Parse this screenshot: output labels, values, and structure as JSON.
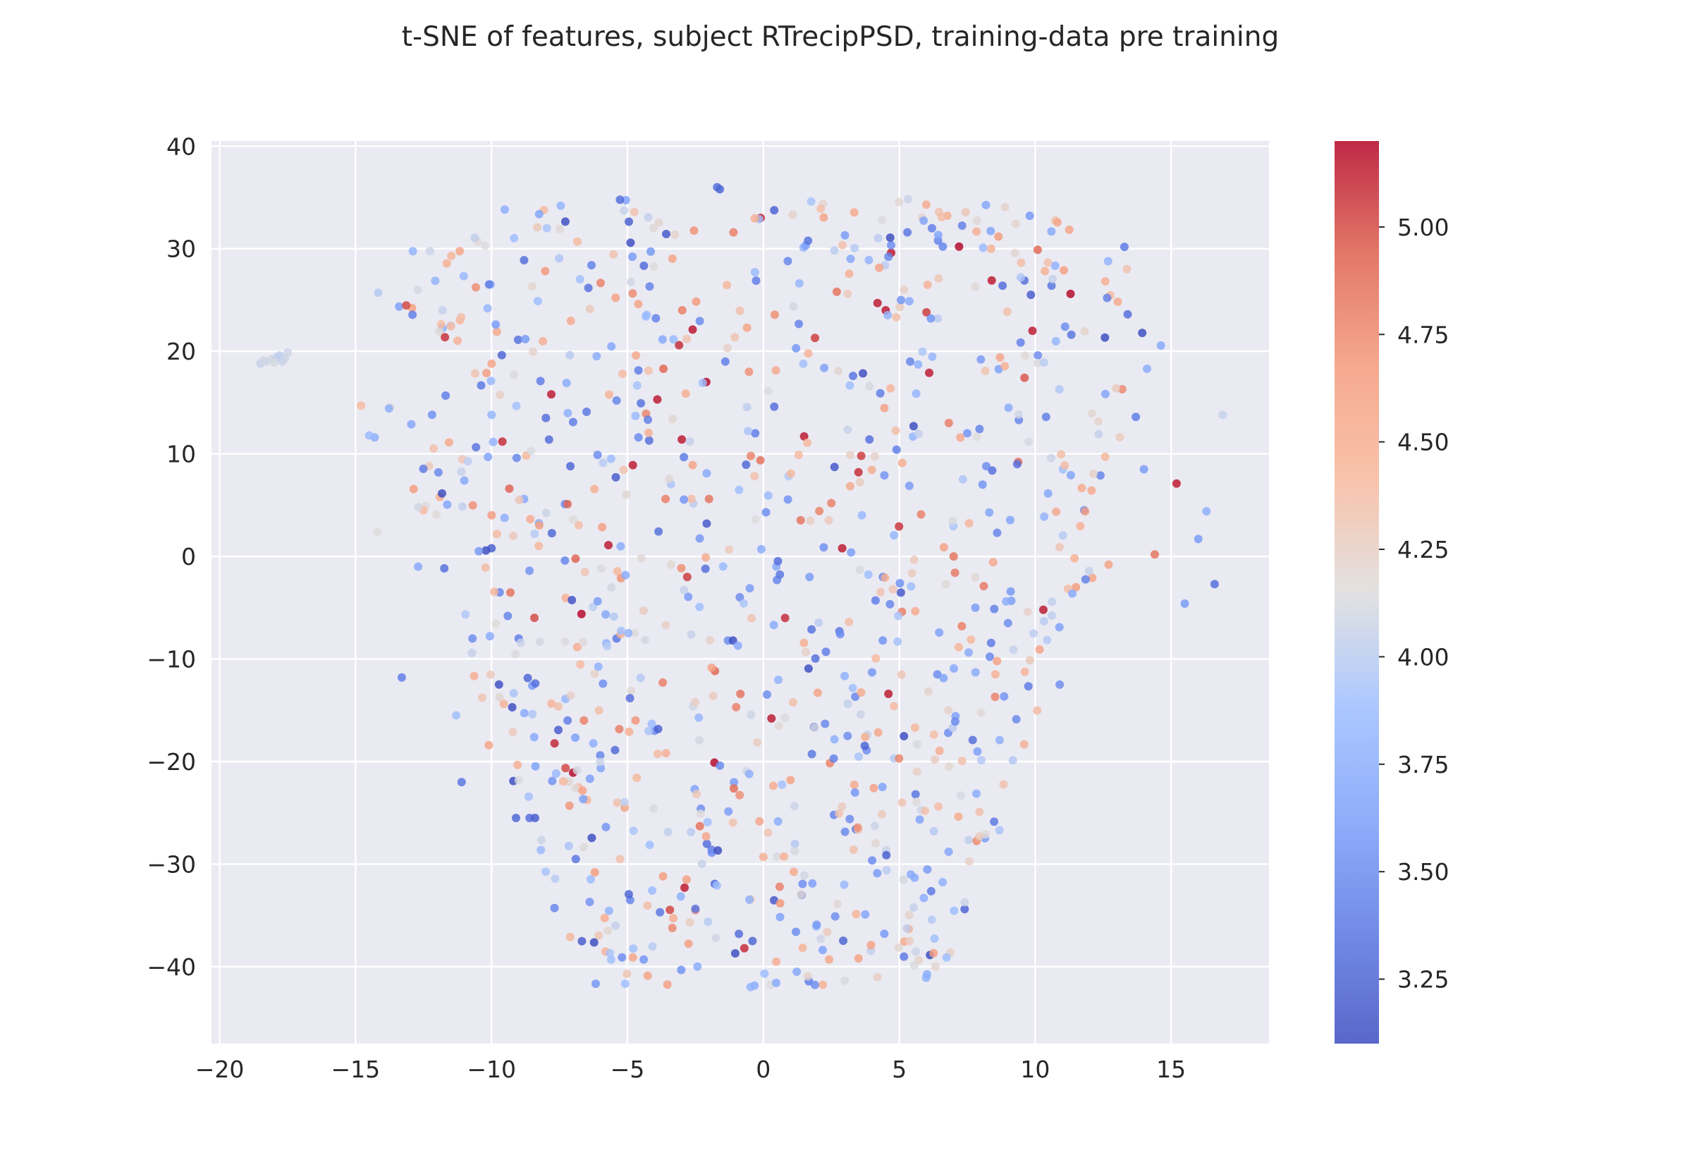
{
  "chart_data": {
    "type": "scatter",
    "title": "t-SNE of features, subject RTrecipPSD, training-data pre training",
    "xlabel": "",
    "ylabel": "",
    "xlim": [
      -20.3,
      18.6
    ],
    "ylim": [
      -47.5,
      40.5
    ],
    "x_ticks": [
      -20,
      -15,
      -10,
      -5,
      0,
      5,
      10,
      15
    ],
    "x_tick_labels": [
      "−20",
      "−15",
      "−10",
      "−5",
      "0",
      "5",
      "10",
      "15"
    ],
    "y_ticks": [
      40,
      30,
      20,
      10,
      0,
      -10,
      -20,
      -30,
      -40
    ],
    "y_tick_labels": [
      "40",
      "30",
      "20",
      "10",
      "0",
      "−10",
      "−20",
      "−30",
      "−40"
    ],
    "grid": true,
    "background": "#eaeaf2",
    "colormap": "coolwarm",
    "colorbar": {
      "range": [
        3.1,
        5.2
      ],
      "ticks": [
        3.25,
        3.5,
        3.75,
        4.0,
        4.25,
        4.5,
        4.75,
        5.0
      ],
      "tick_labels": [
        "3.25",
        "3.50",
        "3.75",
        "4.00",
        "4.25",
        "4.50",
        "4.75",
        "5.00"
      ]
    },
    "point_count_approx": 1000,
    "points": [
      [
        -18.5,
        18.8,
        4.05
      ],
      [
        -18.3,
        19.0,
        4.08
      ],
      [
        -18.1,
        19.2,
        4.1
      ],
      [
        -17.9,
        19.4,
        4.05
      ],
      [
        -18.0,
        18.9,
        4.12
      ],
      [
        -17.6,
        19.3,
        4.1
      ],
      [
        -17.5,
        19.9,
        4.08
      ],
      [
        -17.8,
        19.6,
        4.02
      ],
      [
        -18.4,
        19.1,
        4.1
      ],
      [
        -17.7,
        19.0,
        4.06
      ],
      [
        -14.3,
        11.6,
        3.75
      ],
      [
        -14.5,
        11.8,
        3.85
      ],
      [
        -13.3,
        -11.8,
        3.4
      ],
      [
        -14.8,
        14.7,
        4.4
      ],
      [
        -14.2,
        2.4,
        4.15
      ],
      [
        -12.7,
        -1.0,
        3.7
      ],
      [
        -11.8,
        24.0,
        4.05
      ],
      [
        -11.5,
        22.5,
        4.0
      ],
      [
        -12.3,
        8.8,
        4.3
      ],
      [
        -11.9,
        5.8,
        4.5
      ],
      [
        -11.1,
        -22.0,
        3.35
      ],
      [
        -11.3,
        -15.5,
        3.9
      ],
      [
        -11.0,
        7.4,
        3.7
      ],
      [
        -10.7,
        -8.0,
        3.5
      ],
      [
        -10.1,
        -18.4,
        4.6
      ],
      [
        -10.0,
        0.8,
        3.2
      ],
      [
        -10.0,
        13.8,
        3.8
      ],
      [
        -9.8,
        21.9,
        4.55
      ],
      [
        -9.6,
        11.2,
        5.1
      ],
      [
        -9.7,
        -3.5,
        3.45
      ],
      [
        -9.2,
        2.0,
        4.3
      ],
      [
        -9.1,
        -25.5,
        3.25
      ],
      [
        -8.6,
        -25.5,
        3.3
      ],
      [
        -8.4,
        -25.5,
        3.2
      ],
      [
        -9.0,
        -8.0,
        3.4
      ],
      [
        -8.5,
        -12.6,
        3.6
      ],
      [
        -8.2,
        17.1,
        3.4
      ],
      [
        -8.0,
        13.5,
        3.3
      ],
      [
        -7.8,
        15.8,
        5.15
      ],
      [
        -7.3,
        5.1,
        3.5
      ],
      [
        -7.3,
        -0.4,
        3.45
      ],
      [
        -7.2,
        -16.0,
        3.4
      ],
      [
        -7.0,
        13.1,
        3.4
      ],
      [
        -7.1,
        8.8,
        3.25
      ],
      [
        -6.9,
        -29.5,
        3.35
      ],
      [
        -6.8,
        -22.5,
        4.4
      ],
      [
        -6.5,
        14.1,
        3.35
      ],
      [
        -6.1,
        9.9,
        3.5
      ],
      [
        -6.6,
        -16.0,
        4.8
      ],
      [
        -6.2,
        -30.8,
        4.65
      ],
      [
        -5.9,
        -12.4,
        3.5
      ],
      [
        -5.7,
        1.1,
        5.15
      ],
      [
        -5.6,
        -39.3,
        3.9
      ],
      [
        -5.4,
        -8.0,
        3.35
      ],
      [
        -5.4,
        15.2,
        3.45
      ],
      [
        -5.2,
        -39.1,
        3.5
      ],
      [
        -5.1,
        -24.5,
        4.6
      ],
      [
        -4.8,
        8.9,
        5.15
      ],
      [
        -4.8,
        -39.1,
        4.6
      ],
      [
        -4.7,
        -16.0,
        4.7
      ],
      [
        -4.9,
        -33.5,
        3.45
      ],
      [
        -4.6,
        24.6,
        4.6
      ],
      [
        -4.4,
        -39.3,
        3.55
      ],
      [
        -4.2,
        11.3,
        3.3
      ],
      [
        -4.0,
        -17.0,
        3.5
      ],
      [
        -3.9,
        15.3,
        5.15
      ],
      [
        -3.8,
        -34.7,
        3.35
      ],
      [
        -3.7,
        -12.3,
        4.8
      ],
      [
        -3.6,
        5.6,
        4.8
      ],
      [
        -3.4,
        -0.8,
        4.2
      ],
      [
        -3.1,
        20.6,
        5.1
      ],
      [
        -3.0,
        11.4,
        5.15
      ],
      [
        -2.9,
        -32.3,
        5.15
      ],
      [
        -2.8,
        -2.0,
        5.05
      ],
      [
        -2.6,
        8.9,
        4.6
      ],
      [
        -2.5,
        -34.5,
        4.7
      ],
      [
        -2.3,
        -24.6,
        3.5
      ],
      [
        -2.1,
        17.0,
        5.2
      ],
      [
        -2.0,
        5.6,
        4.85
      ],
      [
        -1.9,
        -28.6,
        3.4
      ],
      [
        -1.8,
        -20.1,
        5.2
      ],
      [
        -1.7,
        36.0,
        3.3
      ],
      [
        -1.6,
        35.8,
        3.25
      ],
      [
        -1.4,
        19.0,
        3.4
      ],
      [
        -1.3,
        -8.2,
        3.5
      ],
      [
        -1.1,
        31.6,
        4.8
      ],
      [
        -1.0,
        -14.7,
        4.8
      ],
      [
        -0.9,
        -36.8,
        3.3
      ],
      [
        -0.7,
        -38.2,
        5.1
      ],
      [
        -0.6,
        22.3,
        4.6
      ],
      [
        -0.5,
        -3.1,
        3.6
      ],
      [
        -0.4,
        -37.5,
        3.25
      ],
      [
        -0.3,
        12.0,
        3.4
      ],
      [
        -0.1,
        33.0,
        5.15
      ],
      [
        0.0,
        -29.3,
        4.5
      ],
      [
        0.1,
        4.3,
        3.5
      ],
      [
        0.3,
        -15.8,
        5.15
      ],
      [
        0.4,
        14.6,
        3.3
      ],
      [
        0.5,
        -2.3,
        3.45
      ],
      [
        0.6,
        -32.2,
        4.8
      ],
      [
        0.8,
        -6.0,
        5.1
      ],
      [
        0.9,
        28.8,
        3.45
      ],
      [
        1.0,
        -21.8,
        4.6
      ],
      [
        1.2,
        -36.6,
        3.5
      ],
      [
        1.3,
        9.9,
        4.4
      ],
      [
        1.4,
        -33.0,
        3.35
      ],
      [
        1.5,
        11.7,
        5.15
      ],
      [
        1.7,
        -2.0,
        3.6
      ],
      [
        1.9,
        21.3,
        5.05
      ],
      [
        2.0,
        -13.3,
        4.6
      ],
      [
        2.2,
        34.4,
        4.2
      ],
      [
        2.3,
        -9.3,
        3.4
      ],
      [
        2.5,
        5.2,
        4.8
      ],
      [
        2.6,
        -25.2,
        3.45
      ],
      [
        2.7,
        25.8,
        4.85
      ],
      [
        2.8,
        -7.3,
        3.35
      ],
      [
        2.9,
        0.8,
        5.15
      ],
      [
        3.0,
        31.3,
        3.6
      ],
      [
        3.1,
        -17.5,
        3.5
      ],
      [
        3.3,
        17.6,
        3.35
      ],
      [
        3.4,
        -26.6,
        3.4
      ],
      [
        3.5,
        8.2,
        5.1
      ],
      [
        3.6,
        9.8,
        5.05
      ],
      [
        3.8,
        -18.9,
        3.5
      ],
      [
        3.9,
        11.4,
        3.3
      ],
      [
        4.0,
        -11.3,
        3.55
      ],
      [
        4.2,
        24.7,
        5.15
      ],
      [
        4.3,
        15.9,
        3.4
      ],
      [
        4.4,
        -2.0,
        3.45
      ],
      [
        4.5,
        24.0,
        5.15
      ],
      [
        4.6,
        -13.4,
        5.15
      ],
      [
        4.7,
        29.6,
        5.15
      ],
      [
        4.9,
        10.4,
        3.4
      ],
      [
        5.1,
        -5.4,
        4.8
      ],
      [
        5.3,
        31.6,
        3.35
      ],
      [
        5.4,
        19.0,
        3.45
      ],
      [
        5.6,
        -23.2,
        3.35
      ],
      [
        5.8,
        4.1,
        4.8
      ],
      [
        6.0,
        23.8,
        5.05
      ],
      [
        6.1,
        17.9,
        5.15
      ],
      [
        6.2,
        32.0,
        3.4
      ],
      [
        6.4,
        -11.5,
        3.5
      ],
      [
        6.6,
        30.2,
        3.45
      ],
      [
        6.8,
        -17.2,
        3.5
      ],
      [
        7.0,
        0.0,
        4.85
      ],
      [
        7.2,
        30.2,
        5.2
      ],
      [
        7.3,
        -6.8,
        4.8
      ],
      [
        7.5,
        12.0,
        3.55
      ],
      [
        7.7,
        -17.9,
        3.3
      ],
      [
        8.0,
        19.2,
        3.6
      ],
      [
        8.2,
        8.8,
        3.5
      ],
      [
        8.4,
        26.9,
        5.15
      ],
      [
        8.6,
        2.3,
        3.45
      ],
      [
        8.8,
        26.4,
        3.3
      ],
      [
        9.0,
        -6.5,
        3.5
      ],
      [
        9.2,
        -9.1,
        4.05
      ],
      [
        9.4,
        13.3,
        3.45
      ],
      [
        9.6,
        26.9,
        3.3
      ],
      [
        9.9,
        22.0,
        5.15
      ],
      [
        10.1,
        19.6,
        3.5
      ],
      [
        10.3,
        -5.2,
        5.15
      ],
      [
        10.4,
        13.6,
        3.4
      ],
      [
        10.6,
        26.4,
        3.35
      ],
      [
        10.9,
        -12.5,
        3.5
      ],
      [
        11.1,
        22.4,
        3.5
      ],
      [
        11.3,
        25.6,
        5.2
      ],
      [
        11.5,
        -3.0,
        4.65
      ],
      [
        11.8,
        4.5,
        3.5
      ],
      [
        12.1,
        -2.1,
        4.6
      ],
      [
        12.4,
        7.9,
        3.45
      ],
      [
        12.7,
        -0.8,
        4.6
      ],
      [
        13.2,
        16.3,
        4.75
      ],
      [
        13.4,
        23.6,
        3.3
      ],
      [
        13.7,
        13.6,
        3.4
      ],
      [
        14.0,
        8.5,
        3.6
      ],
      [
        14.4,
        0.2,
        4.85
      ],
      [
        15.2,
        7.1,
        5.15
      ],
      [
        15.5,
        -4.6,
        3.6
      ],
      [
        16.0,
        1.7,
        3.6
      ],
      [
        16.3,
        4.4,
        3.75
      ],
      [
        16.6,
        -2.7,
        3.3
      ],
      [
        16.9,
        13.8,
        4.05
      ],
      [
        -9.4,
        -5.8,
        3.45
      ],
      [
        -8.8,
        5.6,
        3.7
      ],
      [
        -6.0,
        -19.4,
        3.45
      ]
    ]
  }
}
